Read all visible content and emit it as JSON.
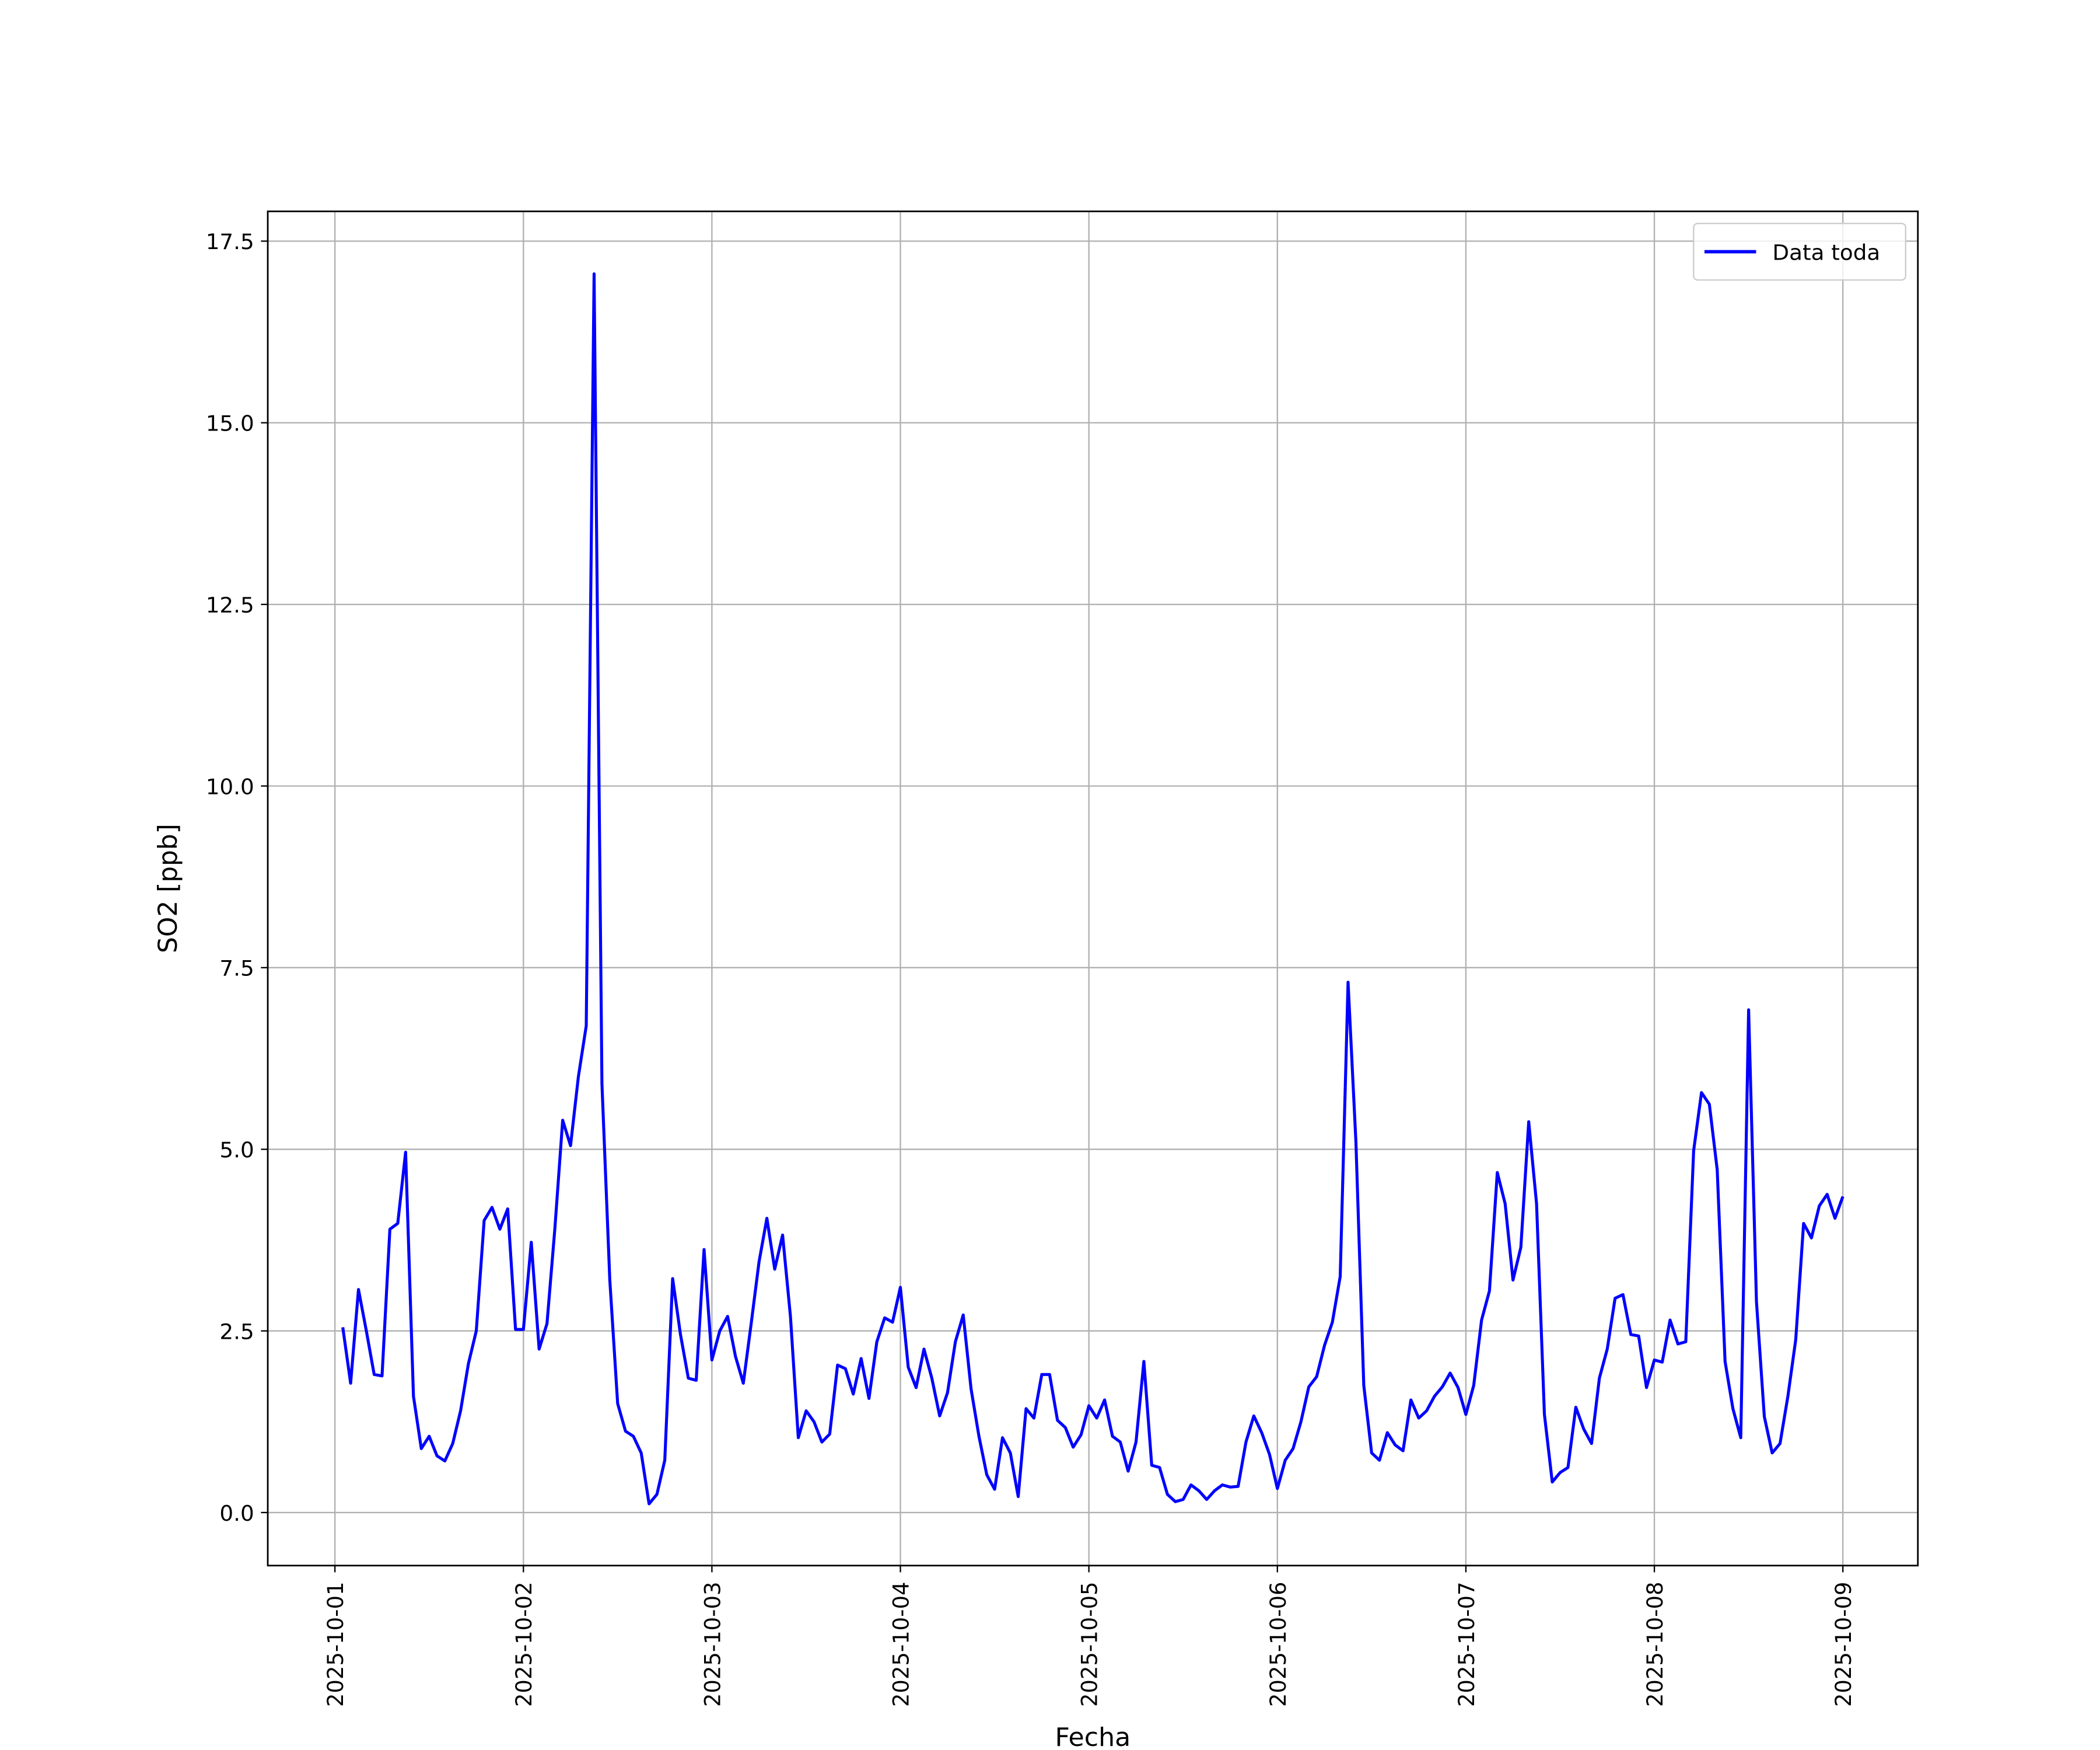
{
  "chart_data": {
    "type": "line",
    "xlabel": "Fecha",
    "ylabel": "SO2 [ppb]",
    "x": [
      "2025-10-01 01:00",
      "2025-10-01 02:00",
      "2025-10-01 03:00",
      "2025-10-01 04:00",
      "2025-10-01 05:00",
      "2025-10-01 06:00",
      "2025-10-01 07:00",
      "2025-10-01 08:00",
      "2025-10-01 09:00",
      "2025-10-01 10:00",
      "2025-10-01 11:00",
      "2025-10-01 12:00",
      "2025-10-01 13:00",
      "2025-10-01 14:00",
      "2025-10-01 15:00",
      "2025-10-01 16:00",
      "2025-10-01 17:00",
      "2025-10-01 18:00",
      "2025-10-01 19:00",
      "2025-10-01 20:00",
      "2025-10-01 21:00",
      "2025-10-01 22:00",
      "2025-10-01 23:00",
      "2025-10-02 00:00",
      "2025-10-02 01:00",
      "2025-10-02 02:00",
      "2025-10-02 03:00",
      "2025-10-02 04:00",
      "2025-10-02 05:00",
      "2025-10-02 06:00",
      "2025-10-02 07:00",
      "2025-10-02 08:00",
      "2025-10-02 09:00",
      "2025-10-02 10:00",
      "2025-10-02 11:00",
      "2025-10-02 12:00",
      "2025-10-02 13:00",
      "2025-10-02 14:00",
      "2025-10-02 15:00",
      "2025-10-02 16:00",
      "2025-10-02 17:00",
      "2025-10-02 18:00",
      "2025-10-02 19:00",
      "2025-10-02 20:00",
      "2025-10-02 21:00",
      "2025-10-02 22:00",
      "2025-10-02 23:00",
      "2025-10-03 00:00",
      "2025-10-03 01:00",
      "2025-10-03 02:00",
      "2025-10-03 03:00",
      "2025-10-03 04:00",
      "2025-10-03 05:00",
      "2025-10-03 06:00",
      "2025-10-03 07:00",
      "2025-10-03 08:00",
      "2025-10-03 09:00",
      "2025-10-03 10:00",
      "2025-10-03 11:00",
      "2025-10-03 12:00",
      "2025-10-03 13:00",
      "2025-10-03 14:00",
      "2025-10-03 15:00",
      "2025-10-03 16:00",
      "2025-10-03 17:00",
      "2025-10-03 18:00",
      "2025-10-03 19:00",
      "2025-10-03 20:00",
      "2025-10-03 21:00",
      "2025-10-03 22:00",
      "2025-10-03 23:00",
      "2025-10-04 00:00",
      "2025-10-04 01:00",
      "2025-10-04 02:00",
      "2025-10-04 03:00",
      "2025-10-04 04:00",
      "2025-10-04 05:00",
      "2025-10-04 06:00",
      "2025-10-04 07:00",
      "2025-10-04 08:00",
      "2025-10-04 09:00",
      "2025-10-04 10:00",
      "2025-10-04 11:00",
      "2025-10-04 12:00",
      "2025-10-04 13:00",
      "2025-10-04 14:00",
      "2025-10-04 15:00",
      "2025-10-04 16:00",
      "2025-10-04 17:00",
      "2025-10-04 18:00",
      "2025-10-04 19:00",
      "2025-10-04 20:00",
      "2025-10-04 21:00",
      "2025-10-04 22:00",
      "2025-10-04 23:00",
      "2025-10-05 00:00",
      "2025-10-05 01:00",
      "2025-10-05 02:00",
      "2025-10-05 03:00",
      "2025-10-05 04:00",
      "2025-10-05 05:00",
      "2025-10-05 06:00",
      "2025-10-05 07:00",
      "2025-10-05 08:00",
      "2025-10-05 09:00",
      "2025-10-05 10:00",
      "2025-10-05 11:00",
      "2025-10-05 12:00",
      "2025-10-05 13:00",
      "2025-10-05 14:00",
      "2025-10-05 15:00",
      "2025-10-05 16:00",
      "2025-10-05 17:00",
      "2025-10-05 18:00",
      "2025-10-05 19:00",
      "2025-10-05 20:00",
      "2025-10-05 21:00",
      "2025-10-05 22:00",
      "2025-10-05 23:00",
      "2025-10-06 00:00",
      "2025-10-06 01:00",
      "2025-10-06 02:00",
      "2025-10-06 03:00",
      "2025-10-06 04:00",
      "2025-10-06 05:00",
      "2025-10-06 06:00",
      "2025-10-06 07:00",
      "2025-10-06 08:00",
      "2025-10-06 09:00",
      "2025-10-06 10:00",
      "2025-10-06 11:00",
      "2025-10-06 12:00",
      "2025-10-06 13:00",
      "2025-10-06 14:00",
      "2025-10-06 15:00",
      "2025-10-06 16:00",
      "2025-10-06 17:00",
      "2025-10-06 18:00",
      "2025-10-06 19:00",
      "2025-10-06 20:00",
      "2025-10-06 21:00",
      "2025-10-06 22:00",
      "2025-10-06 23:00",
      "2025-10-07 00:00",
      "2025-10-07 01:00",
      "2025-10-07 02:00",
      "2025-10-07 03:00",
      "2025-10-07 04:00",
      "2025-10-07 05:00",
      "2025-10-07 06:00",
      "2025-10-07 07:00",
      "2025-10-07 08:00",
      "2025-10-07 09:00",
      "2025-10-07 10:00",
      "2025-10-07 11:00",
      "2025-10-07 12:00",
      "2025-10-07 13:00",
      "2025-10-07 14:00",
      "2025-10-07 15:00",
      "2025-10-07 16:00",
      "2025-10-07 17:00",
      "2025-10-07 18:00",
      "2025-10-07 19:00",
      "2025-10-07 20:00",
      "2025-10-07 21:00",
      "2025-10-07 22:00",
      "2025-10-07 23:00",
      "2025-10-08 00:00",
      "2025-10-08 01:00",
      "2025-10-08 02:00",
      "2025-10-08 03:00",
      "2025-10-08 04:00",
      "2025-10-08 05:00",
      "2025-10-08 06:00",
      "2025-10-08 07:00",
      "2025-10-08 08:00",
      "2025-10-08 09:00",
      "2025-10-08 10:00",
      "2025-10-08 11:00",
      "2025-10-08 12:00",
      "2025-10-08 13:00",
      "2025-10-08 14:00",
      "2025-10-08 15:00",
      "2025-10-08 16:00",
      "2025-10-08 17:00",
      "2025-10-08 18:00",
      "2025-10-08 19:00",
      "2025-10-08 20:00",
      "2025-10-08 21:00",
      "2025-10-08 22:00",
      "2025-10-08 23:00",
      "2025-10-09 00:00"
    ],
    "series": [
      {
        "name": "Data toda",
        "color": "#0000ff",
        "values": [
          2.55,
          1.78,
          3.07,
          2.5,
          1.9,
          1.88,
          3.9,
          3.98,
          4.96,
          1.6,
          0.88,
          1.05,
          0.78,
          0.71,
          0.95,
          1.4,
          2.05,
          2.5,
          4.02,
          4.2,
          3.9,
          4.18,
          2.52,
          2.52,
          3.72,
          2.25,
          2.6,
          3.9,
          5.4,
          5.05,
          6.0,
          6.7,
          17.05,
          5.9,
          3.2,
          1.5,
          1.12,
          1.05,
          0.82,
          0.12,
          0.25,
          0.72,
          3.22,
          2.45,
          1.85,
          1.82,
          3.62,
          2.1,
          2.5,
          2.7,
          2.15,
          1.78,
          2.6,
          3.45,
          4.05,
          3.35,
          3.82,
          2.7,
          1.03,
          1.4,
          1.25,
          0.97,
          1.08,
          2.03,
          1.98,
          1.63,
          2.12,
          1.57,
          2.35,
          2.68,
          2.62,
          3.1,
          2.0,
          1.72,
          2.25,
          1.85,
          1.33,
          1.65,
          2.35,
          2.72,
          1.7,
          1.05,
          0.52,
          0.32,
          1.03,
          0.82,
          0.22,
          1.43,
          1.3,
          1.9,
          1.9,
          1.27,
          1.17,
          0.9,
          1.07,
          1.47,
          1.3,
          1.55,
          1.05,
          0.97,
          0.57,
          0.97,
          2.08,
          0.65,
          0.62,
          0.25,
          0.15,
          0.18,
          0.38,
          0.3,
          0.18,
          0.3,
          0.38,
          0.35,
          0.36,
          0.97,
          1.33,
          1.1,
          0.8,
          0.33,
          0.72,
          0.88,
          1.25,
          1.73,
          1.87,
          2.3,
          2.62,
          3.25,
          7.3,
          5.1,
          1.75,
          0.82,
          0.72,
          1.1,
          0.93,
          0.85,
          1.55,
          1.3,
          1.4,
          1.6,
          1.73,
          1.92,
          1.72,
          1.35,
          1.75,
          2.65,
          3.05,
          4.68,
          4.25,
          3.2,
          3.65,
          5.38,
          4.25,
          1.35,
          0.42,
          0.55,
          0.62,
          1.45,
          1.15,
          0.95,
          1.85,
          2.25,
          2.95,
          3.0,
          2.45,
          2.43,
          1.72,
          2.1,
          2.07,
          2.65,
          2.32,
          2.35,
          4.98,
          5.78,
          5.62,
          4.72,
          2.08,
          1.43,
          1.03,
          6.92,
          2.9,
          1.32,
          0.82,
          0.95,
          1.6,
          2.38,
          3.98,
          3.78,
          4.22,
          4.38,
          4.05,
          4.35
        ]
      }
    ],
    "xlim": [
      "2025-09-30 15:27",
      "2025-10-09 09:33"
    ],
    "xticks": [
      "2025-10-01",
      "2025-10-02",
      "2025-10-03",
      "2025-10-04",
      "2025-10-05",
      "2025-10-06",
      "2025-10-07",
      "2025-10-08",
      "2025-10-09"
    ],
    "ylim": [
      -0.73,
      17.91
    ],
    "yticks": [
      {
        "value": 0,
        "label": "0.0"
      },
      2.5,
      {
        "value": 5,
        "label": "5.0"
      },
      7.5,
      {
        "value": 10,
        "label": "10.0"
      },
      12.5,
      {
        "value": 15,
        "label": "15.0"
      },
      17.5
    ],
    "grid": true,
    "legend": "upper right"
  }
}
